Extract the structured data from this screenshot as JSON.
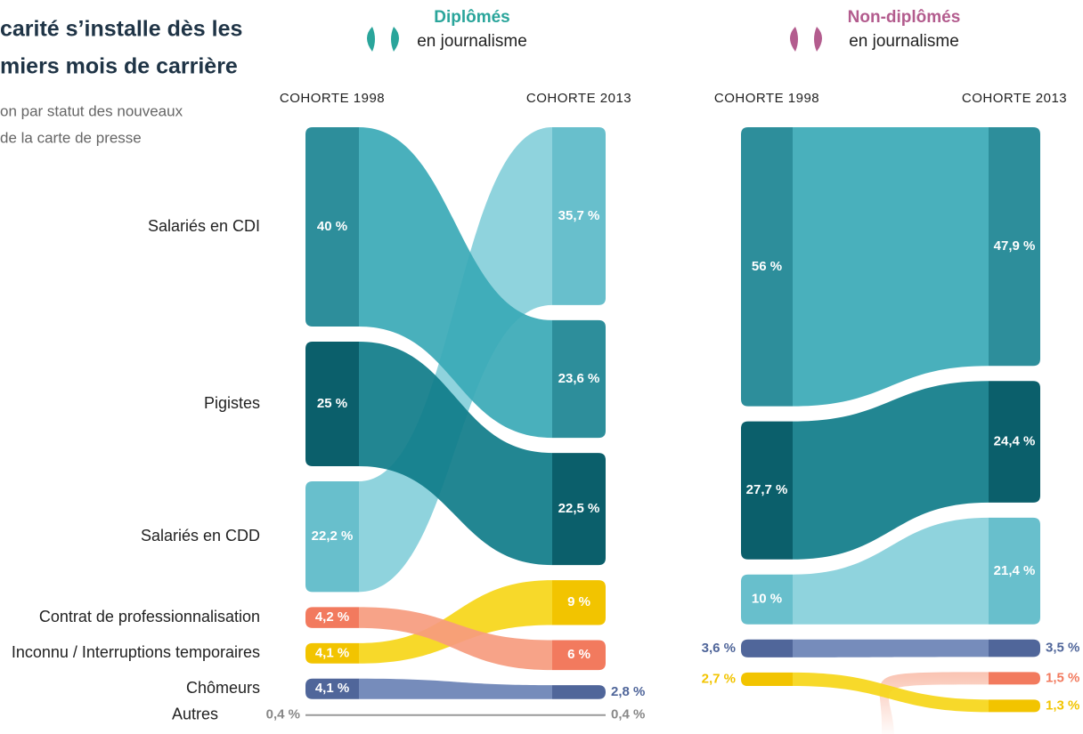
{
  "title_lines": [
    "carité s’installe dès les",
    "miers mois de carrière"
  ],
  "subtitle_lines": [
    "on par statut des nouveaux",
    "de la carte de presse"
  ],
  "statuses": [
    {
      "name": "Salariés en CDI",
      "color": "#2d8e9b",
      "flow_color": "#39a9b6"
    },
    {
      "name": "Pigistes",
      "color": "#0b5f6b",
      "flow_color": "#0f7c89"
    },
    {
      "name": "Salariés en CDD",
      "color": "#68bfcc",
      "flow_color": "#86cfda"
    },
    {
      "name": "Contrat de professionnalisation",
      "color": "#f27a5e",
      "flow_color": "#f69b7e"
    },
    {
      "name": "Inconnu / Interruptions temporaires",
      "color": "#f2c400",
      "flow_color": "#f6d618"
    },
    {
      "name": "Chômeurs",
      "color": "#50669a",
      "flow_color": "#6a82b5"
    },
    {
      "name": "Autres",
      "color": "#888888",
      "flow_color": "#999999"
    }
  ],
  "panels": [
    {
      "title": "Diplômés",
      "title_color": "#2aa59b",
      "subtitle": "en journalisme",
      "left_header": "COHORTE 1998",
      "right_header": "COHORTE 2013",
      "nodes_1998": [
        {
          "status": 0,
          "value": 40,
          "label": "40 %"
        },
        {
          "status": 1,
          "value": 25,
          "label": "25 %"
        },
        {
          "status": 2,
          "value": 22.2,
          "label": "22,2 %"
        },
        {
          "status": 3,
          "value": 4.2,
          "label": "4,2 %"
        },
        {
          "status": 4,
          "value": 4.1,
          "label": "4,1 %"
        },
        {
          "status": 5,
          "value": 4.1,
          "label": "4,1 %"
        },
        {
          "status": 6,
          "value": 0.4,
          "label": "0,4 %"
        }
      ],
      "nodes_2013": [
        {
          "status": 2,
          "value": 35.7,
          "label": "35,7 %"
        },
        {
          "status": 0,
          "value": 23.6,
          "label": "23,6 %"
        },
        {
          "status": 1,
          "value": 22.5,
          "label": "22,5 %"
        },
        {
          "status": 4,
          "value": 9,
          "label": "9 %"
        },
        {
          "status": 3,
          "value": 6,
          "label": "6 %"
        },
        {
          "status": 5,
          "value": 2.8,
          "label": "2,8 %"
        },
        {
          "status": 6,
          "value": 0.4,
          "label": "0,4 %"
        }
      ]
    },
    {
      "title": "Non-diplômés",
      "title_color": "#b35c8e",
      "subtitle": "en journalisme",
      "left_header": "COHORTE 1998",
      "right_header": "COHORTE 2013",
      "nodes_1998": [
        {
          "status": 0,
          "value": 56,
          "label": "56 %"
        },
        {
          "status": 1,
          "value": 27.7,
          "label": "27,7 %"
        },
        {
          "status": 2,
          "value": 10,
          "label": "10 %"
        },
        {
          "status": 5,
          "value": 3.6,
          "label": "3,6 %"
        },
        {
          "status": 4,
          "value": 2.7,
          "label": "2,7 %"
        }
      ],
      "nodes_2013": [
        {
          "status": 0,
          "value": 47.9,
          "label": "47,9 %"
        },
        {
          "status": 1,
          "value": 24.4,
          "label": "24,4 %"
        },
        {
          "status": 2,
          "value": 21.4,
          "label": "21,4 %"
        },
        {
          "status": 5,
          "value": 3.5,
          "label": "3,5 %"
        },
        {
          "status": 3,
          "value": 1.5,
          "label": "1,5 %"
        },
        {
          "status": 4,
          "value": 1.3,
          "label": "1,3 %"
        }
      ]
    }
  ]
}
